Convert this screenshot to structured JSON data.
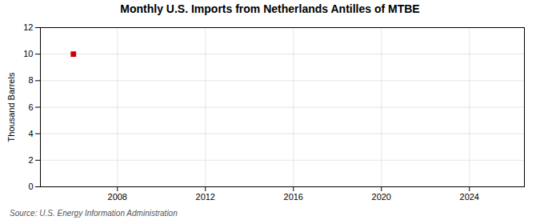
{
  "chart_data": {
    "type": "scatter",
    "title": "Monthly U.S. Imports from Netherlands Antilles of MTBE",
    "y_label": "Thousand Barrels",
    "source": "Source: U.S. Energy Information Administration",
    "x": [
      2006
    ],
    "values": [
      10
    ],
    "color": "#cc0000",
    "marker": "square",
    "xlim": [
      2004.5,
      2026.5
    ],
    "xticks": [
      2008,
      2012,
      2016,
      2020,
      2024
    ],
    "ylim": [
      0,
      12
    ],
    "yticks": [
      0,
      2,
      4,
      6,
      8,
      10,
      12
    ],
    "grid": true
  }
}
